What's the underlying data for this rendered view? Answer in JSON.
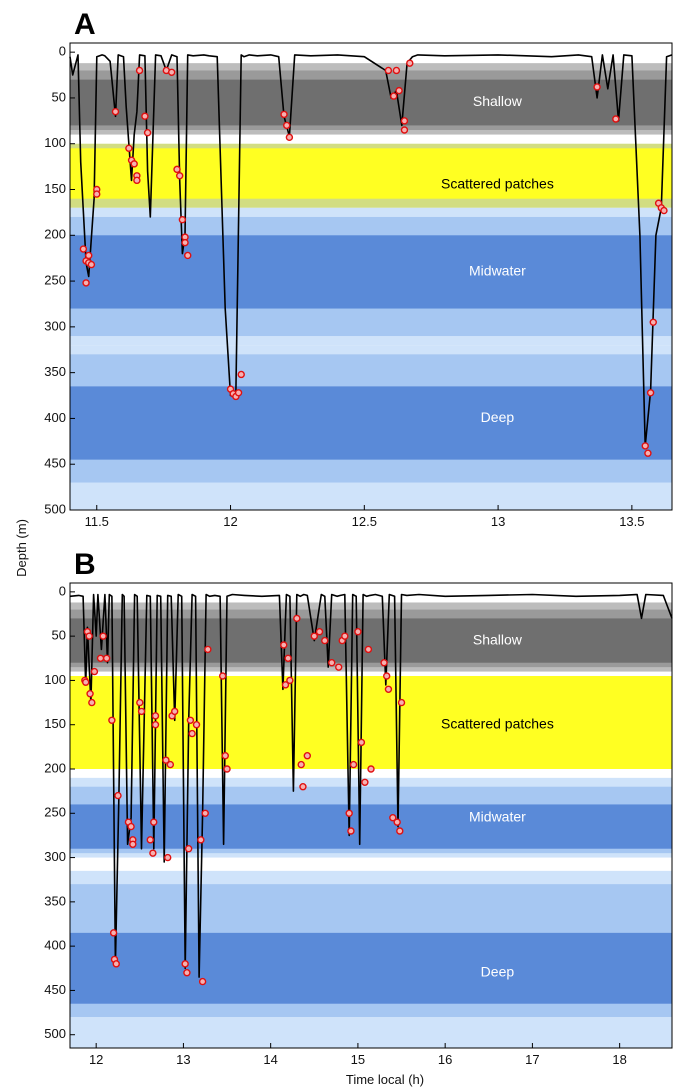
{
  "colors": {
    "outer_band": "#cfe3fa",
    "mid_band": "#a6c7f2",
    "blue_core": "#5a8ad8",
    "grey_outer": "#bcbcbc",
    "grey_mid": "#9a9a9a",
    "grey_core": "#6f6f6f",
    "yellow_core": "#ffff22",
    "yellow_edge": "#d2dd82",
    "track": "#000000",
    "dive_marker": "#e01010"
  },
  "y_axis_label": "Depth (m)",
  "x_axis_label": "Time local (h)",
  "chart_data": [
    {
      "type": "line",
      "panel_label": "A",
      "xlim": [
        11.4,
        13.65
      ],
      "ylim": [
        500,
        -10
      ],
      "xticks": [
        11.5,
        12,
        12.5,
        13,
        13.5
      ],
      "xtick_labels": [
        "11.5",
        "12",
        "12.5",
        "13",
        "13.5"
      ],
      "yticks": [
        0,
        50,
        100,
        150,
        200,
        250,
        300,
        350,
        400,
        450,
        500
      ],
      "ytick_labels": [
        "0",
        "50",
        "100",
        "150",
        "200",
        "250",
        "300",
        "350",
        "400",
        "450",
        "500"
      ],
      "zones": [
        {
          "name": "Shallow",
          "label_depth": 55,
          "label_color": "#ffffff",
          "bands": [
            [
              12,
              90,
              "grey_outer"
            ],
            [
              20,
              85,
              "grey_mid"
            ],
            [
              30,
              80,
              "grey_core"
            ]
          ]
        },
        {
          "name": "Scattered patches",
          "label_depth": 145,
          "label_color": "#000000",
          "bands": [
            [
              100,
              170,
              "yellow_edge"
            ],
            [
              105,
              160,
              "yellow_core"
            ]
          ]
        },
        {
          "name": "Midwater",
          "label_depth": 240,
          "label_color": "#ffffff",
          "bands": [
            [
              170,
              320,
              "outer_band"
            ],
            [
              180,
              310,
              "mid_band"
            ],
            [
              200,
              280,
              "blue_core"
            ]
          ]
        },
        {
          "name": "Deep",
          "label_depth": 400,
          "label_color": "#ffffff",
          "bands": [
            [
              320,
              500,
              "outer_band"
            ],
            [
              330,
              470,
              "mid_band"
            ],
            [
              365,
              445,
              "blue_core"
            ]
          ]
        }
      ],
      "track": {
        "x": [
          11.4,
          11.41,
          11.43,
          11.44,
          11.46,
          11.47,
          11.49,
          11.5,
          11.52,
          11.53,
          11.55,
          11.57,
          11.58,
          11.6,
          11.61,
          11.63,
          11.64,
          11.65,
          11.66,
          11.68,
          11.69,
          11.7,
          11.72,
          11.74,
          11.76,
          11.78,
          11.8,
          11.81,
          11.82,
          11.83,
          11.84,
          11.86,
          11.9,
          11.92,
          11.95,
          11.98,
          12.0,
          12.02,
          12.04,
          12.05,
          12.07,
          12.1,
          12.15,
          12.18,
          12.2,
          12.22,
          12.24,
          12.3,
          12.4,
          12.5,
          12.58,
          12.6,
          12.62,
          12.64,
          12.66,
          12.68,
          12.7,
          12.8,
          13.0,
          13.2,
          13.3,
          13.35,
          13.37,
          13.39,
          13.41,
          13.43,
          13.45,
          13.47,
          13.5,
          13.53,
          13.55,
          13.57,
          13.59,
          13.61,
          13.63,
          13.65
        ],
        "y": [
          5,
          25,
          3,
          120,
          230,
          245,
          160,
          5,
          3,
          4,
          10,
          70,
          3,
          5,
          60,
          140,
          90,
          65,
          3,
          4,
          130,
          180,
          3,
          4,
          20,
          3,
          5,
          140,
          220,
          200,
          3,
          4,
          3,
          4,
          5,
          280,
          375,
          370,
          3,
          5,
          3,
          4,
          3,
          5,
          70,
          92,
          3,
          4,
          3,
          5,
          20,
          50,
          42,
          80,
          12,
          5,
          3,
          4,
          3,
          5,
          3,
          5,
          50,
          3,
          40,
          3,
          75,
          3,
          4,
          200,
          430,
          370,
          200,
          170,
          5,
          3
        ]
      },
      "markers": {
        "x": [
          11.45,
          11.46,
          11.46,
          11.47,
          11.47,
          11.48,
          11.5,
          11.5,
          11.57,
          11.62,
          11.63,
          11.64,
          11.65,
          11.65,
          11.66,
          11.68,
          11.69,
          11.76,
          11.78,
          11.8,
          11.81,
          11.82,
          11.83,
          11.83,
          11.84,
          12.0,
          12.01,
          12.02,
          12.03,
          12.04,
          12.2,
          12.21,
          12.22,
          12.59,
          12.61,
          12.62,
          12.63,
          12.65,
          12.65,
          12.67,
          13.37,
          13.44,
          13.55,
          13.56,
          13.57,
          13.58,
          13.6,
          13.61,
          13.62
        ],
        "y": [
          215,
          228,
          252,
          222,
          230,
          232,
          150,
          155,
          65,
          105,
          118,
          122,
          135,
          140,
          20,
          70,
          88,
          20,
          22,
          128,
          135,
          183,
          202,
          208,
          222,
          368,
          373,
          376,
          372,
          352,
          68,
          80,
          93,
          20,
          48,
          20,
          42,
          75,
          85,
          12,
          38,
          73,
          430,
          438,
          372,
          295,
          165,
          170,
          173
        ]
      }
    },
    {
      "type": "line",
      "panel_label": "B",
      "xlim": [
        11.7,
        18.6
      ],
      "ylim": [
        515,
        -10
      ],
      "xticks": [
        12,
        13,
        14,
        15,
        16,
        17,
        18
      ],
      "xtick_labels": [
        "12",
        "13",
        "14",
        "15",
        "16",
        "17",
        "18"
      ],
      "yticks": [
        0,
        50,
        100,
        150,
        200,
        250,
        300,
        350,
        400,
        450,
        500
      ],
      "ytick_labels": [
        "0",
        "50",
        "100",
        "150",
        "200",
        "250",
        "300",
        "350",
        "400",
        "450",
        "500"
      ],
      "zones": [
        {
          "name": "Shallow",
          "label_depth": 55,
          "label_color": "#ffffff",
          "bands": [
            [
              12,
              90,
              "grey_outer"
            ],
            [
              20,
              85,
              "grey_mid"
            ],
            [
              30,
              80,
              "grey_core"
            ]
          ]
        },
        {
          "name": "Scattered patches",
          "label_depth": 150,
          "label_color": "#000000",
          "bands": [
            [
              95,
              200,
              "yellow_core"
            ]
          ]
        },
        {
          "name": "Midwater",
          "label_depth": 255,
          "label_color": "#ffffff",
          "bands": [
            [
              210,
              300,
              "outer_band"
            ],
            [
              220,
              295,
              "mid_band"
            ],
            [
              240,
              290,
              "blue_core"
            ]
          ]
        },
        {
          "name": "Deep",
          "label_depth": 430,
          "label_color": "#ffffff",
          "bands": [
            [
              315,
              515,
              "outer_band"
            ],
            [
              330,
              480,
              "mid_band"
            ],
            [
              385,
              465,
              "blue_core"
            ]
          ]
        }
      ],
      "track": {
        "x": [
          11.7,
          11.8,
          11.85,
          11.88,
          11.9,
          11.94,
          11.97,
          12.0,
          12.02,
          12.06,
          12.1,
          12.13,
          12.15,
          12.18,
          12.22,
          12.26,
          12.3,
          12.32,
          12.36,
          12.4,
          12.44,
          12.47,
          12.52,
          12.58,
          12.62,
          12.66,
          12.7,
          12.74,
          12.78,
          12.82,
          12.86,
          12.9,
          12.94,
          12.98,
          13.02,
          13.06,
          13.1,
          13.14,
          13.18,
          13.22,
          13.26,
          13.3,
          13.36,
          13.42,
          13.46,
          13.5,
          13.56,
          13.7,
          13.9,
          14.1,
          14.14,
          14.18,
          14.22,
          14.26,
          14.3,
          14.34,
          14.38,
          14.42,
          14.5,
          14.58,
          14.62,
          14.66,
          14.7,
          14.76,
          14.8,
          14.85,
          14.9,
          14.94,
          14.98,
          15.02,
          15.06,
          15.1,
          15.14,
          15.2,
          15.28,
          15.32,
          15.36,
          15.42,
          15.46,
          15.5,
          15.56,
          15.7,
          16.0,
          16.5,
          17.0,
          17.5,
          18.0,
          18.2,
          18.25,
          18.3,
          18.5,
          18.6
        ],
        "y": [
          5,
          4,
          5,
          105,
          40,
          125,
          3,
          50,
          3,
          65,
          3,
          80,
          3,
          5,
          420,
          230,
          3,
          5,
          285,
          255,
          3,
          5,
          290,
          4,
          5,
          290,
          4,
          5,
          305,
          4,
          5,
          145,
          3,
          5,
          425,
          145,
          3,
          5,
          435,
          250,
          3,
          5,
          4,
          5,
          285,
          5,
          3,
          4,
          5,
          4,
          110,
          3,
          5,
          225,
          3,
          5,
          3,
          4,
          55,
          3,
          5,
          85,
          3,
          5,
          4,
          3,
          275,
          3,
          5,
          285,
          3,
          5,
          4,
          3,
          5,
          105,
          3,
          5,
          265,
          3,
          4,
          3,
          5,
          4,
          3,
          5,
          4,
          3,
          30,
          3,
          4,
          30
        ]
      },
      "markers": {
        "x": [
          11.87,
          11.88,
          11.9,
          11.92,
          11.93,
          11.95,
          11.98,
          12.05,
          12.08,
          12.12,
          12.18,
          12.2,
          12.21,
          12.23,
          12.25,
          12.37,
          12.4,
          12.42,
          12.42,
          12.5,
          12.52,
          12.62,
          12.65,
          12.66,
          12.68,
          12.68,
          12.8,
          12.82,
          12.85,
          12.87,
          12.9,
          13.02,
          13.04,
          13.06,
          13.08,
          13.1,
          13.15,
          13.2,
          13.22,
          13.25,
          13.28,
          13.45,
          13.48,
          13.5,
          14.15,
          14.17,
          14.2,
          14.22,
          14.3,
          14.35,
          14.37,
          14.42,
          14.5,
          14.56,
          14.62,
          14.7,
          14.78,
          14.82,
          14.85,
          14.9,
          14.92,
          14.95,
          15.0,
          15.04,
          15.08,
          15.12,
          15.15,
          15.3,
          15.33,
          15.35,
          15.4,
          15.45,
          15.48,
          15.5
        ],
        "y": [
          100,
          102,
          45,
          50,
          115,
          125,
          90,
          75,
          50,
          75,
          145,
          385,
          415,
          420,
          230,
          260,
          265,
          280,
          285,
          125,
          135,
          280,
          295,
          260,
          140,
          150,
          190,
          300,
          195,
          140,
          135,
          420,
          430,
          290,
          145,
          160,
          150,
          280,
          440,
          250,
          65,
          95,
          185,
          200,
          60,
          105,
          75,
          100,
          30,
          195,
          220,
          185,
          50,
          45,
          55,
          80,
          85,
          55,
          50,
          250,
          270,
          195,
          45,
          170,
          215,
          65,
          200,
          80,
          95,
          110,
          255,
          260,
          270,
          125
        ]
      }
    }
  ]
}
